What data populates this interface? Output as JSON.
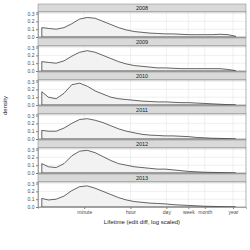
{
  "chart_data": [
    {
      "type": "area",
      "title": "2008",
      "log": "x",
      "grid": true,
      "tick_labels": "y",
      "color": "#f2f2f2",
      "x": [
        1.4,
        2.5,
        5,
        10,
        20,
        40,
        79,
        158,
        316,
        631,
        1259,
        2512,
        5012,
        10000,
        19953,
        39811,
        79433,
        158489,
        316228,
        630957,
        1258925,
        2511886,
        5011872,
        10000000,
        19952623,
        39810717
      ],
      "values": [
        0.12,
        0.11,
        0.1,
        0.12,
        0.17,
        0.23,
        0.25,
        0.24,
        0.2,
        0.16,
        0.12,
        0.09,
        0.07,
        0.06,
        0.05,
        0.045,
        0.04,
        0.04,
        0.035,
        0.03,
        0.03,
        0.03,
        0.03,
        0.035,
        0.03,
        0.01
      ],
      "xlim": [
        1,
        100000000
      ],
      "ylim": [
        0,
        0.32
      ],
      "xticks": [
        {
          "value": 60,
          "label": "minute"
        },
        {
          "value": 3600,
          "label": "hour"
        },
        {
          "value": 86400,
          "label": "day"
        },
        {
          "value": 604800,
          "label": "week"
        },
        {
          "value": 2592000,
          "label": "month"
        },
        {
          "value": 31536000,
          "label": "year"
        }
      ],
      "yticks": [
        {
          "value": 0,
          "label": "0.0"
        },
        0.1,
        0.2,
        0.3
      ]
    },
    {
      "type": "area",
      "title": "2009",
      "log": "x",
      "grid": true,
      "tick_labels": "y",
      "color": "#f2f2f2",
      "x": [
        1.4,
        2.5,
        5,
        10,
        20,
        40,
        79,
        158,
        316,
        631,
        1259,
        2512,
        5012,
        10000,
        19953,
        39811,
        79433,
        158489,
        316228,
        630957,
        1258925,
        2511886,
        5011872,
        10000000,
        19952623,
        39810717
      ],
      "values": [
        0.12,
        0.11,
        0.1,
        0.13,
        0.19,
        0.24,
        0.26,
        0.24,
        0.2,
        0.16,
        0.12,
        0.09,
        0.07,
        0.06,
        0.05,
        0.04,
        0.04,
        0.035,
        0.03,
        0.03,
        0.03,
        0.03,
        0.03,
        0.03,
        0.02,
        0.005
      ],
      "xlim": [
        1,
        100000000
      ],
      "ylim": [
        0,
        0.32
      ],
      "xticks": [
        {
          "value": 60,
          "label": "minute"
        },
        {
          "value": 3600,
          "label": "hour"
        },
        {
          "value": 86400,
          "label": "day"
        },
        {
          "value": 604800,
          "label": "week"
        },
        {
          "value": 2592000,
          "label": "month"
        },
        {
          "value": 31536000,
          "label": "year"
        }
      ],
      "yticks": [
        {
          "value": 0,
          "label": "0.0"
        },
        0.1,
        0.2,
        0.3
      ]
    },
    {
      "type": "area",
      "title": "2010",
      "log": "x",
      "grid": true,
      "tick_labels": "y",
      "color": "#f2f2f2",
      "x": [
        1.4,
        2.5,
        5,
        10,
        20,
        40,
        79,
        158,
        316,
        631,
        1259,
        2512,
        5012,
        10000,
        19953,
        39811,
        79433,
        158489,
        316228,
        630957,
        1258925,
        2511886,
        5011872,
        10000000,
        19952623,
        39810717
      ],
      "values": [
        0.17,
        0.1,
        0.08,
        0.15,
        0.26,
        0.28,
        0.24,
        0.18,
        0.14,
        0.1,
        0.08,
        0.07,
        0.06,
        0.05,
        0.045,
        0.04,
        0.04,
        0.035,
        0.03,
        0.03,
        0.025,
        0.02,
        0.015,
        0.01,
        0.005,
        0.002
      ],
      "xlim": [
        1,
        100000000
      ],
      "ylim": [
        0,
        0.32
      ],
      "xticks": [
        {
          "value": 60,
          "label": "minute"
        },
        {
          "value": 3600,
          "label": "hour"
        },
        {
          "value": 86400,
          "label": "day"
        },
        {
          "value": 604800,
          "label": "week"
        },
        {
          "value": 2592000,
          "label": "month"
        },
        {
          "value": 31536000,
          "label": "year"
        }
      ],
      "yticks": [
        {
          "value": 0,
          "label": "0.0"
        },
        0.1,
        0.2,
        0.3
      ]
    },
    {
      "type": "area",
      "title": "2011",
      "log": "x",
      "grid": true,
      "tick_labels": "y",
      "color": "#f2f2f2",
      "x": [
        1.4,
        2.5,
        5,
        10,
        20,
        40,
        79,
        158,
        316,
        631,
        1259,
        2512,
        5012,
        10000,
        19953,
        39811,
        79433,
        158489,
        316228,
        630957,
        1258925,
        2511886,
        5011872,
        10000000,
        19952623,
        39810717
      ],
      "values": [
        0.11,
        0.1,
        0.1,
        0.14,
        0.2,
        0.25,
        0.26,
        0.24,
        0.21,
        0.17,
        0.13,
        0.1,
        0.08,
        0.06,
        0.05,
        0.045,
        0.04,
        0.04,
        0.035,
        0.03,
        0.02,
        0.015,
        0.01,
        0.008,
        0.005,
        0.002
      ],
      "xlim": [
        1,
        100000000
      ],
      "ylim": [
        0,
        0.32
      ],
      "xticks": [
        {
          "value": 60,
          "label": "minute"
        },
        {
          "value": 3600,
          "label": "hour"
        },
        {
          "value": 86400,
          "label": "day"
        },
        {
          "value": 604800,
          "label": "week"
        },
        {
          "value": 2592000,
          "label": "month"
        },
        {
          "value": 31536000,
          "label": "year"
        }
      ],
      "yticks": [
        {
          "value": 0,
          "label": "0.0"
        },
        0.1,
        0.2,
        0.3
      ]
    },
    {
      "type": "area",
      "title": "2012",
      "log": "x",
      "grid": true,
      "tick_labels": "y",
      "color": "#f2f2f2",
      "x": [
        1.4,
        2.5,
        5,
        10,
        20,
        40,
        79,
        158,
        316,
        631,
        1259,
        2512,
        5012,
        10000,
        19953,
        39811,
        79433,
        158489,
        316228,
        630957,
        1258925,
        2511886,
        5011872,
        10000000,
        19952623,
        39810717
      ],
      "values": [
        0.12,
        0.08,
        0.07,
        0.12,
        0.22,
        0.28,
        0.29,
        0.26,
        0.21,
        0.16,
        0.12,
        0.1,
        0.08,
        0.07,
        0.06,
        0.05,
        0.05,
        0.04,
        0.03,
        0.02,
        0.015,
        0.01,
        0.008,
        0.005,
        0.003,
        0.001
      ],
      "xlim": [
        1,
        100000000
      ],
      "ylim": [
        0,
        0.32
      ],
      "xticks": [
        {
          "value": 60,
          "label": "minute"
        },
        {
          "value": 3600,
          "label": "hour"
        },
        {
          "value": 86400,
          "label": "day"
        },
        {
          "value": 604800,
          "label": "week"
        },
        {
          "value": 2592000,
          "label": "month"
        },
        {
          "value": 31536000,
          "label": "year"
        }
      ],
      "yticks": [
        {
          "value": 0,
          "label": "0.0"
        },
        0.1,
        0.2,
        0.3
      ]
    },
    {
      "type": "area",
      "title": "2013",
      "log": "x",
      "grid": true,
      "color": "#f2f2f2",
      "x_label": "Lifetime (edit diff, log scaled)",
      "y_label": "density",
      "x": [
        1.4,
        2.5,
        5,
        10,
        20,
        40,
        79,
        158,
        316,
        631,
        1259,
        2512,
        5012,
        10000,
        19953,
        39811,
        79433,
        158489,
        316228,
        630957,
        1258925,
        2511886,
        5011872,
        10000000,
        19952623,
        39810717
      ],
      "values": [
        0.11,
        0.09,
        0.1,
        0.14,
        0.21,
        0.26,
        0.27,
        0.24,
        0.2,
        0.16,
        0.12,
        0.09,
        0.07,
        0.06,
        0.05,
        0.045,
        0.04,
        0.03,
        0.025,
        0.02,
        0.015,
        0.01,
        0.008,
        0.005,
        0.003,
        0.001
      ],
      "xlim": [
        1,
        100000000
      ],
      "ylim": [
        0,
        0.32
      ],
      "xticks": [
        {
          "value": 60,
          "label": "minute"
        },
        {
          "value": 3600,
          "label": "hour"
        },
        {
          "value": 86400,
          "label": "day"
        },
        {
          "value": 604800,
          "label": "week"
        },
        {
          "value": 2592000,
          "label": "month"
        },
        {
          "value": 31536000,
          "label": "year"
        }
      ],
      "yticks": [
        {
          "value": 0,
          "label": "0.0"
        },
        0.1,
        0.2,
        0.3
      ]
    }
  ]
}
